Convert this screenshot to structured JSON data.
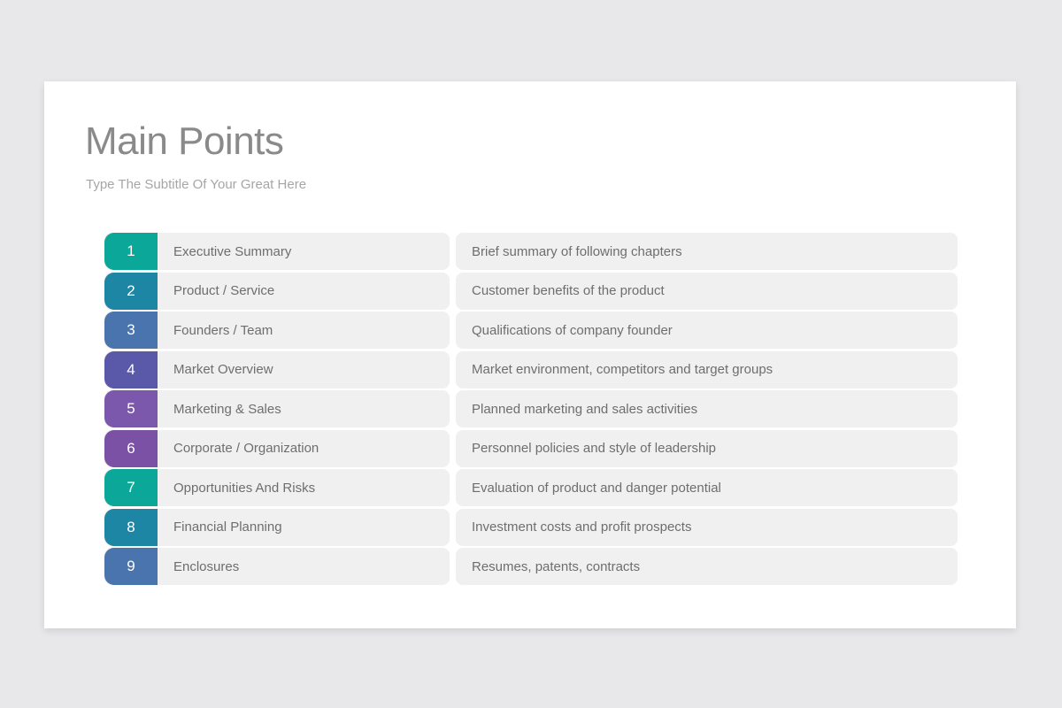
{
  "slide": {
    "title": "Main Points",
    "subtitle": "Type The Subtitle Of Your Great Here"
  },
  "colors": {
    "page_background": "#e8e7e9",
    "card_background": "#ffffff",
    "pill_background": "#f0f0f0",
    "title_text": "#8a8a8a",
    "subtitle_text": "#a6a6a6",
    "row_text": "#6e6e6e",
    "badge_text": "#ffffff"
  },
  "rows": [
    {
      "number": "1",
      "title": "Executive Summary",
      "description": "Brief summary of following chapters",
      "badge_color": "#0ba89a"
    },
    {
      "number": "2",
      "title": "Product / Service",
      "description": "Customer benefits of the product",
      "badge_color": "#1e86a5"
    },
    {
      "number": "3",
      "title": "Founders / Team",
      "description": "Qualifications of company founder",
      "badge_color": "#4a74ad"
    },
    {
      "number": "4",
      "title": "Market Overview",
      "description": "Market environment, competitors and target groups",
      "badge_color": "#5958a9"
    },
    {
      "number": "5",
      "title": "Marketing & Sales",
      "description": "Planned marketing and sales activities",
      "badge_color": "#7b58ac"
    },
    {
      "number": "6",
      "title": "Corporate / Organization",
      "description": "Personnel policies and style of leadership",
      "badge_color": "#7b51a6"
    },
    {
      "number": "7",
      "title": "Opportunities And Risks",
      "description": "Evaluation of product and danger potential",
      "badge_color": "#0ba89a"
    },
    {
      "number": "8",
      "title": "Financial Planning",
      "description": "Investment costs and profit prospects",
      "badge_color": "#1e86a5"
    },
    {
      "number": "9",
      "title": "Enclosures",
      "description": "Resumes, patents, contracts",
      "badge_color": "#4a74ad"
    }
  ]
}
